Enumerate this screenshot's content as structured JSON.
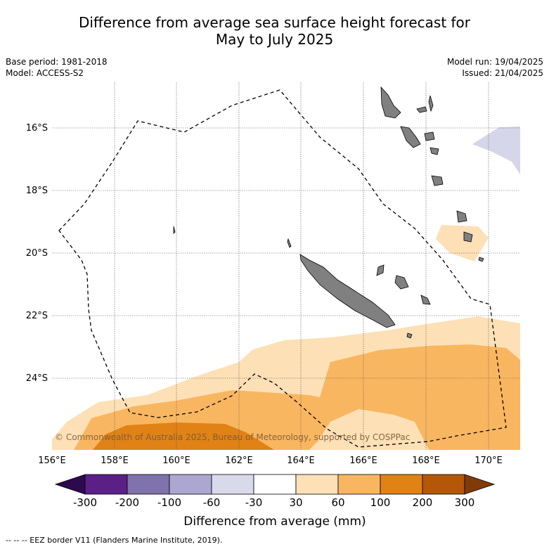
{
  "title": {
    "line1": "Difference from average sea surface height forecast for",
    "line2": "May to July 2025"
  },
  "meta": {
    "base_period": "Base period: 1981-2018",
    "model": "Model: ACCESS-S2",
    "model_run": "Model run: 19/04/2025",
    "issued": "Issued: 21/04/2025"
  },
  "map": {
    "lon_ticks": [
      "156°E",
      "158°E",
      "160°E",
      "162°E",
      "164°E",
      "166°E",
      "168°E",
      "170°E"
    ],
    "lat_ticks": [
      "16°S",
      "18°S",
      "20°S",
      "22°S",
      "24°S"
    ],
    "copyright": "© Commonwealth of Australia 2025, Bureau of Meteorology, supported by COSPPac",
    "land_color": "#808080",
    "eez_style": "dashed"
  },
  "colorbar": {
    "labels": [
      "-300",
      "-200",
      "-100",
      "-60",
      "-30",
      "30",
      "60",
      "100",
      "200",
      "300"
    ],
    "colors": [
      "#2d0a4e",
      "#5a2088",
      "#7f72ad",
      "#aca7d0",
      "#d9d9ec",
      "#ffffff",
      "#fde0b6",
      "#f9b660",
      "#e08216",
      "#b35806",
      "#7f3b08"
    ],
    "title": "Difference from average (mm)"
  },
  "footer": "--  --  -- EEZ border V11 (Flanders Marine Institute, 2019)."
}
